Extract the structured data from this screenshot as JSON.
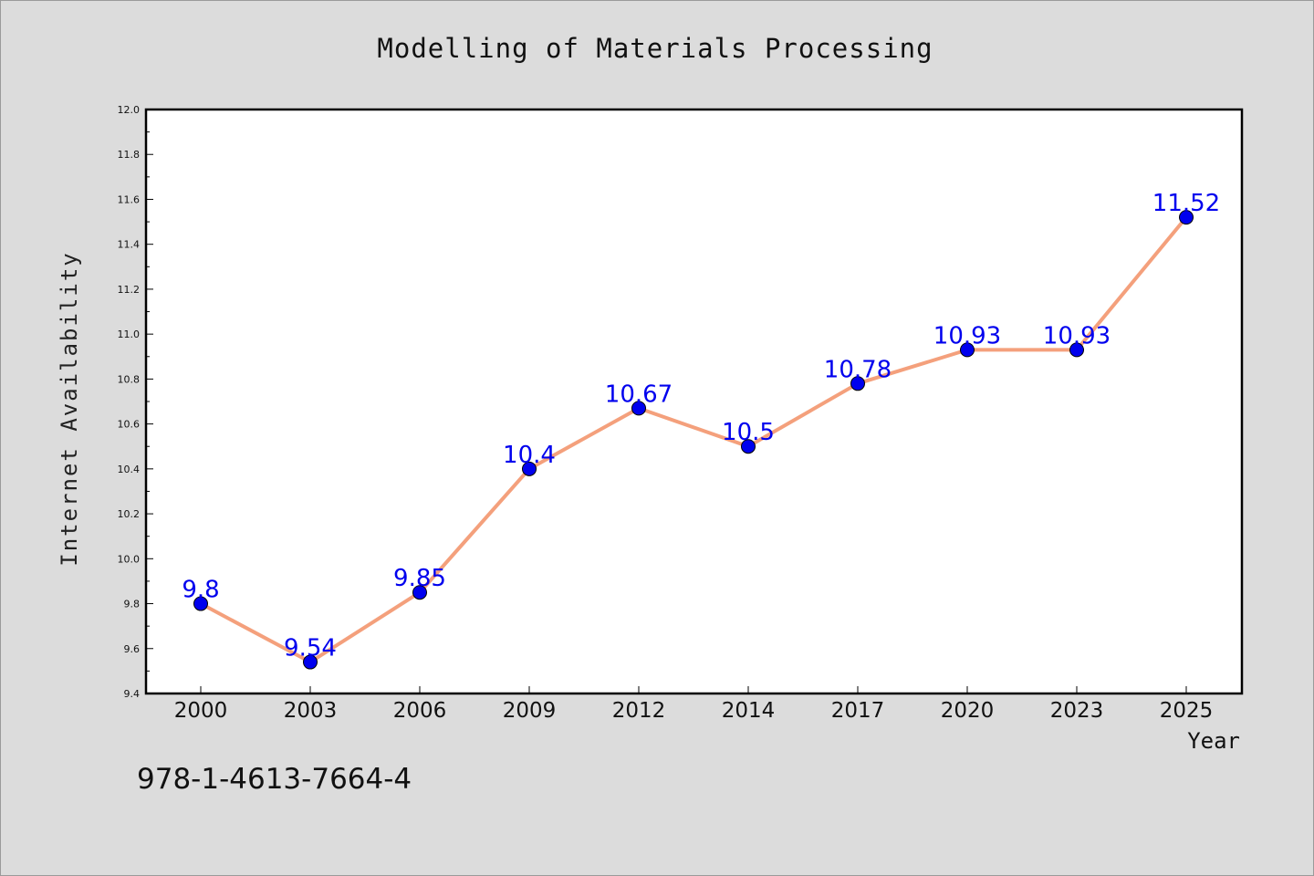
{
  "chart_data": {
    "type": "line",
    "title": "Modelling of Materials Processing",
    "xlabel": "Year",
    "ylabel": "Internet Availability",
    "categories": [
      "2000",
      "2003",
      "2006",
      "2009",
      "2012",
      "2014",
      "2017",
      "2020",
      "2023",
      "2025"
    ],
    "series": [
      {
        "values": [
          9.8,
          9.54,
          9.85,
          10.4,
          10.67,
          10.5,
          10.78,
          10.93,
          10.93,
          11.52
        ]
      }
    ],
    "data_labels": [
      "9.8",
      "9.54",
      "9.85",
      "10.4",
      "10.67",
      "10.5",
      "10.78",
      "10.93",
      "10.93",
      "11.52"
    ],
    "ylim": [
      9.4,
      12.0
    ],
    "yticks": [
      "9.4",
      "9.6",
      "9.8",
      "10.0",
      "10.2",
      "10.4",
      "10.6",
      "10.8",
      "11.0",
      "11.2",
      "11.4",
      "11.6",
      "11.8",
      "12.0"
    ],
    "grid": false,
    "legend": "none",
    "colors": {
      "line": "#f4a07c",
      "marker": "#0000ee",
      "data_label": "#0000ee",
      "plot_bg": "#ffffff",
      "figure_bg": "#dcdcdc"
    }
  },
  "footer": {
    "isbn": "978-1-4613-7664-4"
  }
}
